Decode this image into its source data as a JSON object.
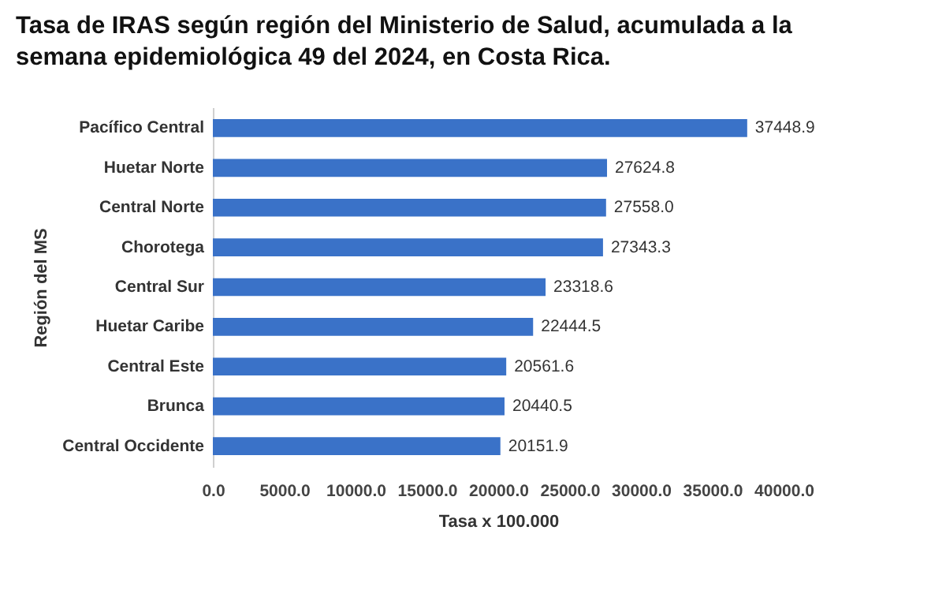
{
  "chart_data": {
    "type": "bar",
    "orientation": "horizontal",
    "title": "Tasa de IRAS según región del Ministerio de Salud, acumulada a la semana epidemiológica 49 del 2024, en Costa Rica.",
    "xlabel": "Tasa x 100.000",
    "ylabel": "Región del MS",
    "categories": [
      "Pacífico Central",
      "Huetar Norte",
      "Central Norte",
      "Chorotega",
      "Central Sur",
      "Huetar Caribe",
      "Central Este",
      "Brunca",
      "Central Occidente"
    ],
    "values": [
      37448.9,
      27624.8,
      27558.0,
      27343.3,
      23318.6,
      22444.5,
      20561.6,
      20440.5,
      20151.9
    ],
    "value_labels": [
      "37448.9",
      "27624.8",
      "27558.0",
      "27343.3",
      "23318.6",
      "22444.5",
      "20561.6",
      "20440.5",
      "20151.9"
    ],
    "color": "#3a72c8",
    "xlim": [
      0,
      40000
    ],
    "xticks": [
      {
        "value": 0,
        "label": "0.0"
      },
      {
        "value": 5000,
        "label": "5000.0"
      },
      {
        "value": 10000,
        "label": "10000.0"
      },
      {
        "value": 15000,
        "label": "15000.0"
      },
      {
        "value": 20000,
        "label": "20000.0"
      },
      {
        "value": 25000,
        "label": "25000.0"
      },
      {
        "value": 30000,
        "label": "30000.0"
      },
      {
        "value": 35000,
        "label": "35000.0"
      },
      {
        "value": 40000,
        "label": "40000.0"
      }
    ],
    "grid": false
  }
}
